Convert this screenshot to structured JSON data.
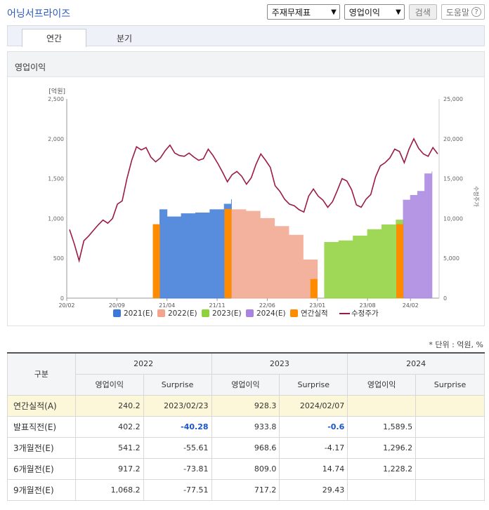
{
  "app_title": "어닝서프라이즈",
  "controls": {
    "statement_select": "주재무제표",
    "metric_select": "영업이익",
    "search_button": "검색",
    "help_button": "도움말",
    "help_icon": "question-circle-icon"
  },
  "tabs": [
    {
      "label": "연간",
      "active": true
    },
    {
      "label": "분기",
      "active": false
    }
  ],
  "section_title": "영업이익",
  "chart_data": {
    "type": "area",
    "left_axis_unit": "[억원]",
    "right_axis_label": "수정주가",
    "left_ticks": [
      "0",
      "500",
      "1,000",
      "1,500",
      "2,000",
      "2,500"
    ],
    "right_ticks": [
      "0",
      "5,000",
      "10,000",
      "15,000",
      "20,000",
      "25,000"
    ],
    "ylim": [
      0,
      2500
    ],
    "y2lim": [
      0,
      25000
    ],
    "x_ticks": [
      "20/02",
      "20/09",
      "21/04",
      "21/11",
      "22/06",
      "23/01",
      "23/08",
      "24/02"
    ],
    "legend": [
      "2021(E)",
      "2022(E)",
      "2023(E)",
      "2024(E)",
      "연간실적",
      "수정주가"
    ],
    "colors": {
      "e2021": "#3b78d8",
      "e2022": "#f2a58c",
      "e2023": "#8fd13a",
      "e2024": "#a884e0",
      "actual": "#ff8c00",
      "price": "#9b1b45"
    },
    "series": [
      {
        "name": "2021(E)",
        "x": [
          "21/03",
          "21/04",
          "21/06",
          "21/08",
          "21/10",
          "21/12",
          "22/01"
        ],
        "values": [
          1110,
          1020,
          1060,
          1070,
          1110,
          1180,
          1240
        ]
      },
      {
        "name": "2022(E)",
        "x": [
          "22/01",
          "22/03",
          "22/05",
          "22/07",
          "22/09",
          "22/11",
          "23/01"
        ],
        "values": [
          1110,
          1090,
          1000,
          900,
          790,
          480,
          410
        ]
      },
      {
        "name": "2023(E)",
        "x": [
          "23/02",
          "23/04",
          "23/06",
          "23/08",
          "23/10",
          "23/12",
          "24/01"
        ],
        "values": [
          700,
          720,
          780,
          860,
          920,
          980,
          960
        ]
      },
      {
        "name": "2024(E)",
        "x": [
          "24/01",
          "24/02",
          "24/03",
          "24/04",
          "24/05"
        ],
        "values": [
          1230,
          1290,
          1340,
          1560,
          1590
        ]
      },
      {
        "name": "연간실적",
        "type": "bar",
        "x": [
          "21/03",
          "22/01",
          "23/01",
          "24/01"
        ],
        "values": [
          928,
          1120,
          240,
          928
        ]
      }
    ],
    "price_series": {
      "name": "수정주가",
      "values": [
        8600,
        6800,
        4700,
        7200,
        7800,
        8500,
        9200,
        9800,
        9400,
        10000,
        11800,
        12200,
        15000,
        17300,
        19000,
        18600,
        18900,
        17700,
        17100,
        17600,
        18500,
        19200,
        18200,
        17900,
        17800,
        18200,
        17700,
        17300,
        17500,
        18700,
        17900,
        16900,
        15800,
        14600,
        15500,
        15900,
        15300,
        14300,
        15100,
        16800,
        18100,
        17300,
        16400,
        14100,
        13400,
        12400,
        11800,
        11600,
        11100,
        10800,
        12800,
        13700,
        12800,
        12300,
        11400,
        12100,
        13500,
        15000,
        14700,
        13600,
        11700,
        11400,
        12400,
        13000,
        15200,
        16600,
        17000,
        17600,
        18700,
        18400,
        17000,
        18700,
        20000,
        18800,
        18100,
        17800,
        18900,
        18100
      ]
    }
  },
  "unit_note": "* 단위 : 억원, %",
  "table": {
    "row_header": "구분",
    "years": [
      "2022",
      "2023",
      "2024"
    ],
    "sub_headers": [
      "영업이익",
      "Surprise",
      "영업이익",
      "Surprise",
      "영업이익",
      "Surprise"
    ],
    "rows": [
      {
        "label": "연간실적(A)",
        "cells": [
          "240.2",
          "2023/02/23",
          "928.3",
          "2024/02/07",
          "",
          ""
        ]
      },
      {
        "label": "발표직전(E)",
        "cells": [
          "402.2",
          "-40.28",
          "933.8",
          "-0.6",
          "1,589.5",
          ""
        ]
      },
      {
        "label": "3개월전(E)",
        "cells": [
          "541.2",
          "-55.61",
          "968.6",
          "-4.17",
          "1,296.2",
          ""
        ]
      },
      {
        "label": "6개월전(E)",
        "cells": [
          "917.2",
          "-73.81",
          "809.0",
          "14.74",
          "1,228.2",
          ""
        ]
      },
      {
        "label": "9개월전(E)",
        "cells": [
          "1,068.2",
          "-77.51",
          "717.2",
          "29.43",
          "",
          ""
        ]
      }
    ]
  }
}
